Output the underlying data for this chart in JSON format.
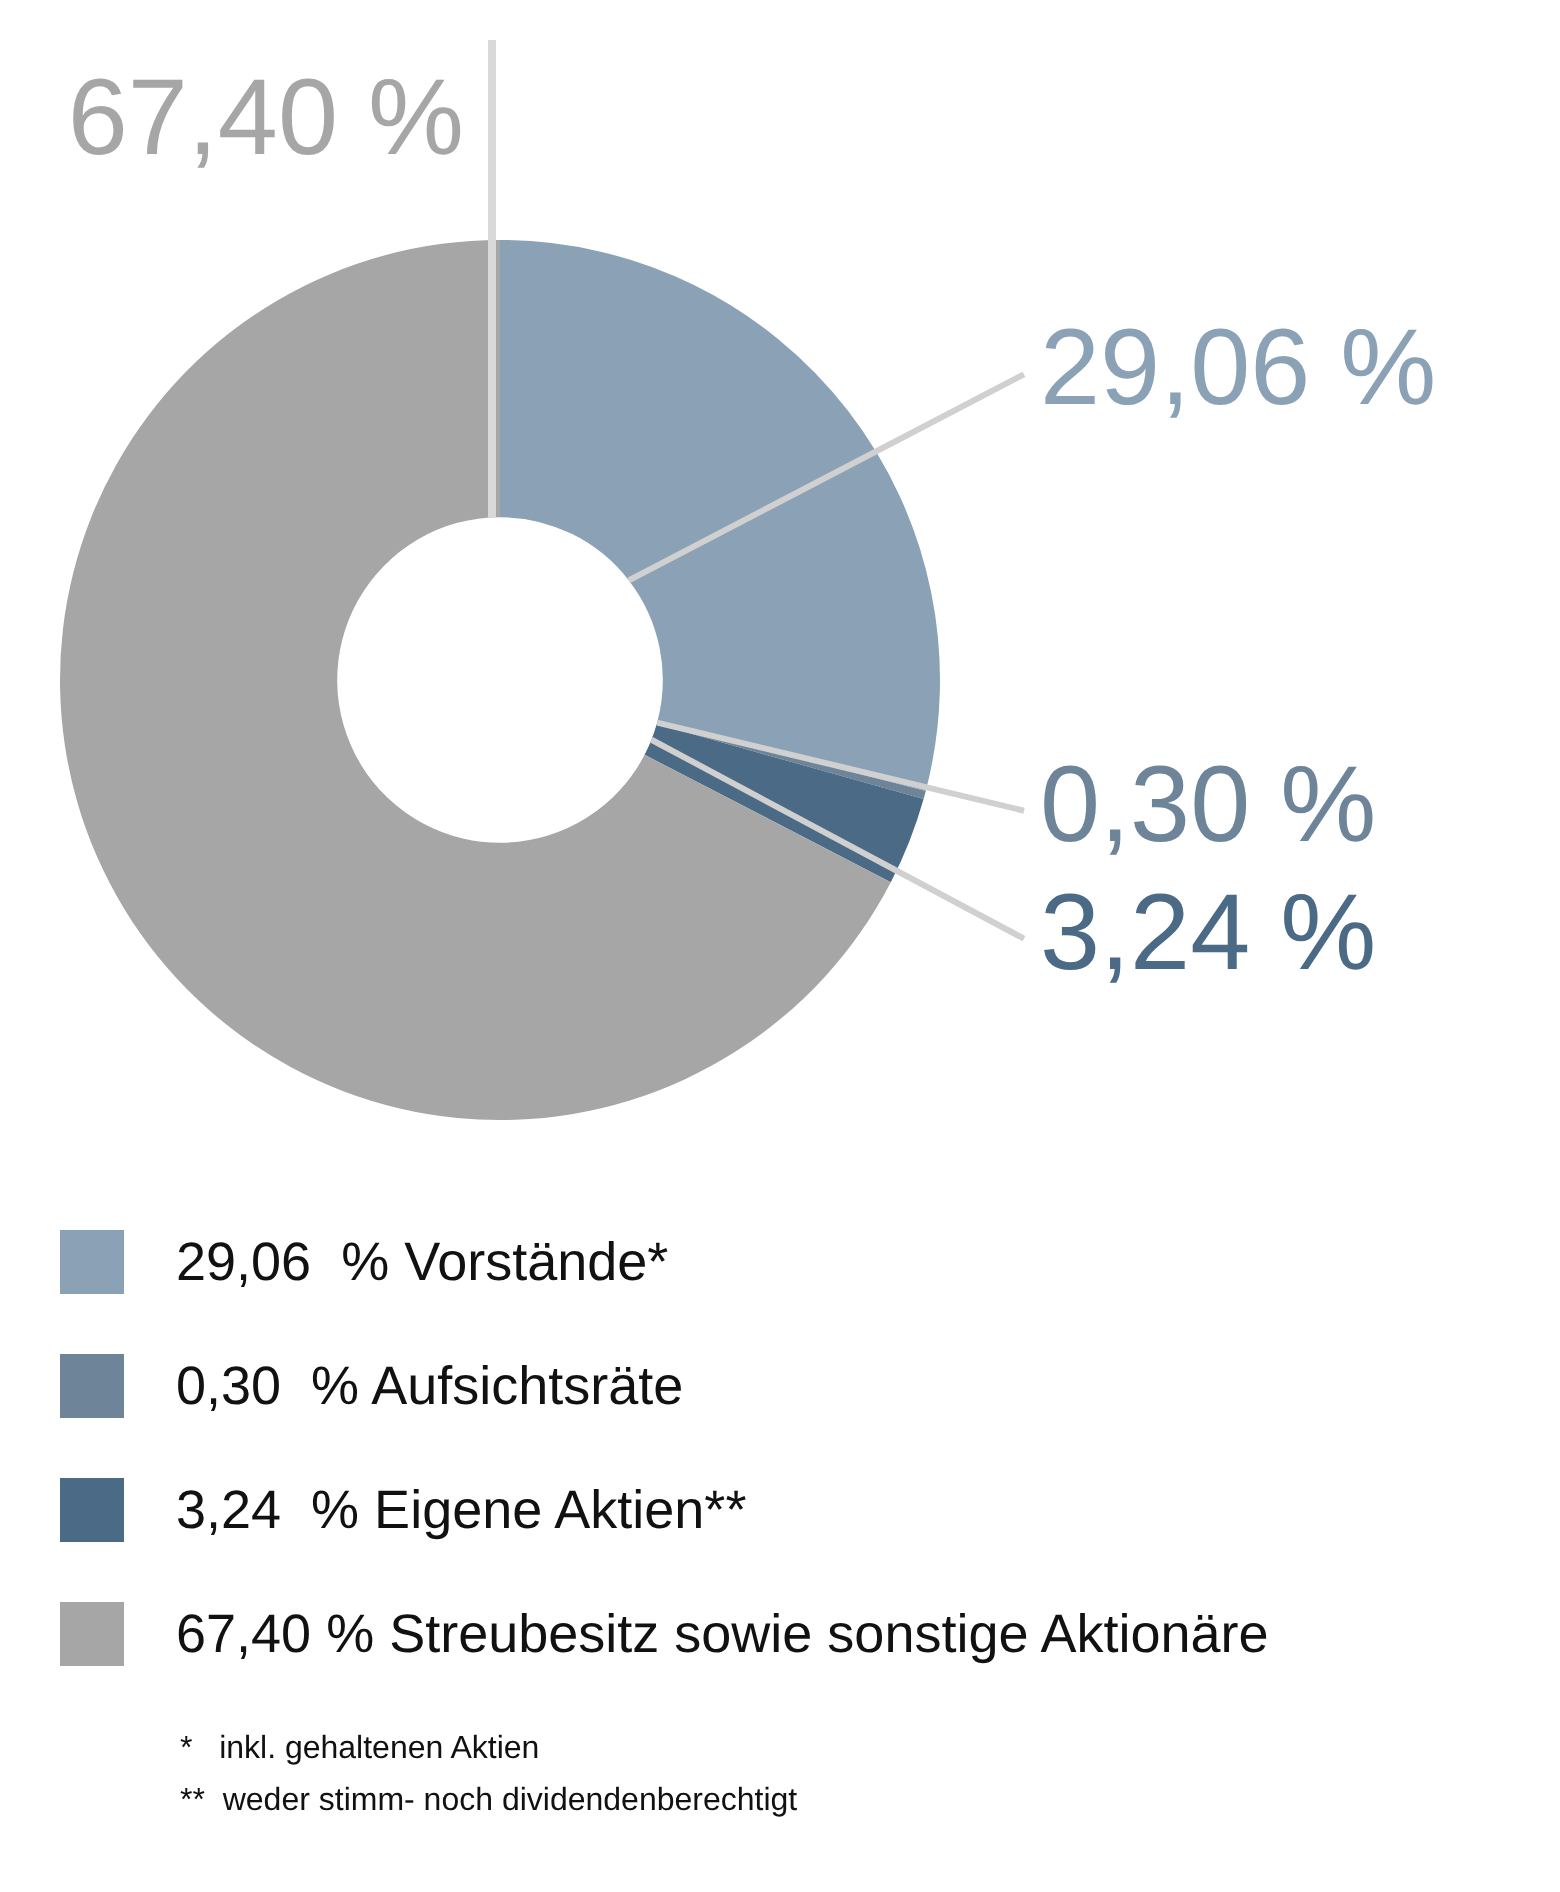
{
  "chart_data": {
    "type": "donut",
    "categories": [
      "29,06  % Vorstände*",
      "0,30  % Aufsichtsräte",
      "3,24  % Eigene Aktien**",
      "67,40 % Streubesitz sowie sonstige Aktionäre"
    ],
    "values": [
      29.06,
      0.3,
      3.24,
      67.4
    ],
    "colors": [
      "#8aa1b6",
      "#6e8499",
      "#4b6a85",
      "#a6a6a6"
    ],
    "value_labels": [
      "29,06 %",
      "0,30 %",
      "3,24 %",
      "67,40 %"
    ],
    "legend": "bottom",
    "annotations": [
      "*   inkl. gehaltenen Aktien",
      "**  weder stimm- noch dividendenberechtigt"
    ]
  }
}
